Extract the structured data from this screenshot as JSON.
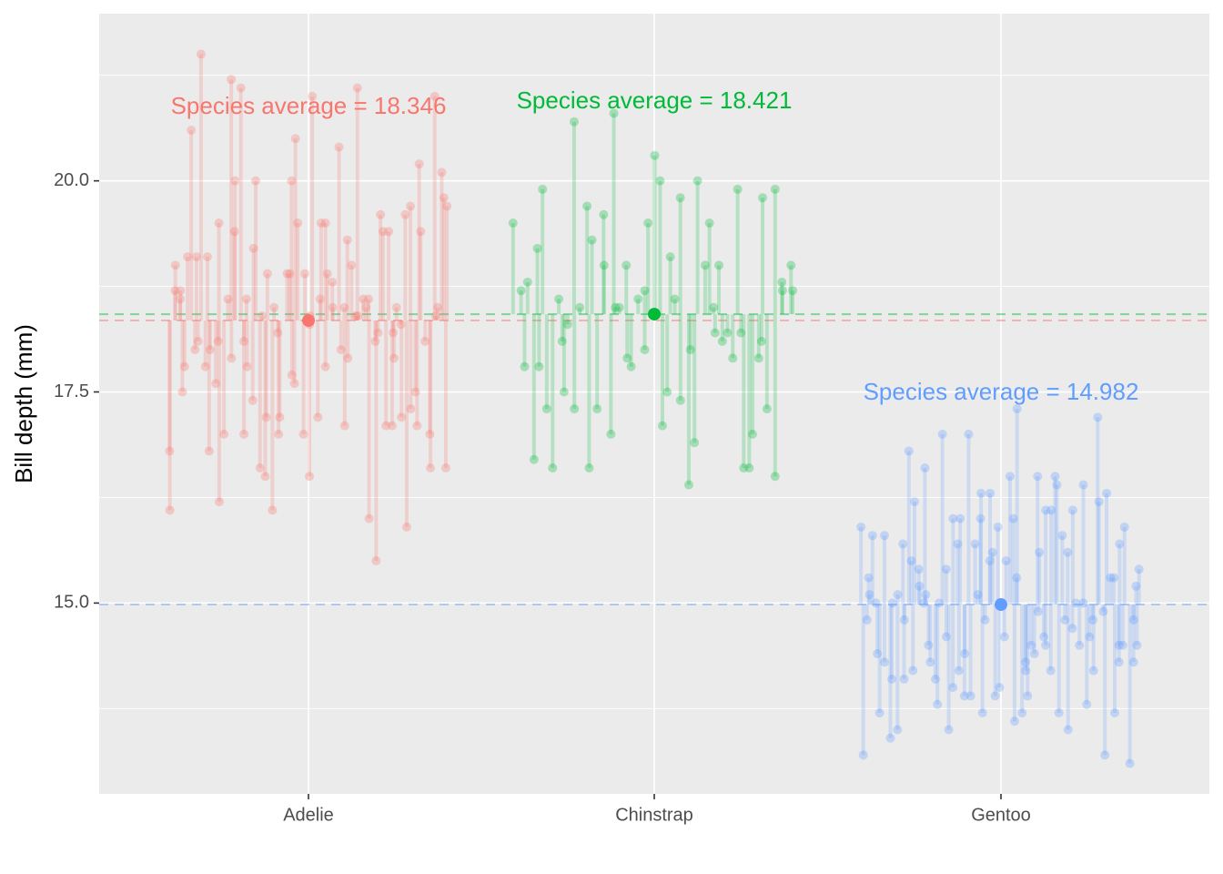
{
  "chart_data": {
    "type": "scatter",
    "title": "",
    "xlabel": "",
    "ylabel": "Bill depth (mm)",
    "categories": [
      "Adelie",
      "Chinstrap",
      "Gentoo"
    ],
    "y_ticks": [
      15.0,
      17.5,
      20.0
    ],
    "y_tick_labels": [
      "15.0",
      "17.5",
      "20.0"
    ],
    "ylim": [
      12.74,
      21.98
    ],
    "grid": true,
    "legend": "none",
    "series": [
      {
        "category": "Adelie",
        "color": "#F8766D",
        "average": 18.346,
        "annotation": "Species average = 18.346",
        "values": [
          16.1,
          16.8,
          18.7,
          19.0,
          18.7,
          18.6,
          17.5,
          17.8,
          19.1,
          20.6,
          18.0,
          18.1,
          19.1,
          21.5,
          17.8,
          19.1,
          18.0,
          16.8,
          17.6,
          19.5,
          18.1,
          16.2,
          17.0,
          18.6,
          21.2,
          17.9,
          19.4,
          20.0,
          21.1,
          18.1,
          17.0,
          18.6,
          17.8,
          17.4,
          19.2,
          20.0,
          16.6,
          18.4,
          16.5,
          17.2,
          18.9,
          18.5,
          16.1,
          18.2,
          17.0,
          17.2,
          18.9,
          18.9,
          20.0,
          17.7,
          17.6,
          20.5,
          19.5,
          18.9,
          17.0,
          18.3,
          16.5,
          18.4,
          21.0,
          17.2,
          18.6,
          19.5,
          17.8,
          19.5,
          18.9,
          18.5,
          18.8,
          20.4,
          18.0,
          17.1,
          18.5,
          19.3,
          17.9,
          19.0,
          18.4,
          21.1,
          18.4,
          18.6,
          18.5,
          18.6,
          16.0,
          18.1,
          15.5,
          18.2,
          19.4,
          19.6,
          17.1,
          19.4,
          17.1,
          17.9,
          18.2,
          18.5,
          18.3,
          17.2,
          15.9,
          19.6,
          17.3,
          19.7,
          17.1,
          17.5,
          20.2,
          19.4,
          18.1,
          16.6,
          17.0,
          18.4,
          21.0,
          18.5,
          20.1,
          19.8,
          16.6,
          19.7
        ]
      },
      {
        "category": "Chinstrap",
        "color": "#00BA38",
        "average": 18.421,
        "annotation": "Species average = 18.421",
        "values": [
          19.5,
          18.7,
          17.8,
          18.8,
          16.7,
          19.2,
          17.8,
          19.9,
          17.3,
          16.6,
          18.6,
          18.1,
          17.5,
          18.3,
          17.3,
          20.7,
          18.5,
          19.7,
          16.6,
          19.3,
          17.3,
          19.6,
          19.0,
          17.0,
          20.8,
          18.5,
          18.5,
          19.0,
          17.9,
          17.8,
          18.6,
          18.0,
          18.7,
          19.5,
          20.3,
          20.0,
          17.1,
          17.5,
          19.1,
          18.6,
          19.8,
          17.4,
          16.4,
          18.0,
          16.9,
          20.0,
          19.0,
          19.5,
          18.5,
          18.2,
          19.0,
          18.1,
          18.2,
          17.9,
          19.9,
          18.2,
          16.6,
          16.6,
          17.0,
          17.9,
          18.1,
          19.8,
          17.3,
          16.5,
          19.9,
          18.8,
          18.7,
          19.0,
          18.7
        ]
      },
      {
        "category": "Gentoo",
        "color": "#619CFF",
        "average": 14.982,
        "annotation": "Species average = 14.982",
        "values": [
          15.9,
          13.2,
          14.8,
          15.1,
          15.3,
          15.8,
          15.0,
          14.4,
          13.7,
          14.3,
          15.8,
          13.4,
          15.0,
          14.1,
          15.1,
          13.5,
          15.7,
          14.8,
          14.1,
          16.8,
          15.5,
          16.2,
          14.2,
          15.2,
          15.4,
          15.0,
          15.1,
          16.6,
          14.5,
          14.3,
          14.1,
          13.8,
          15.0,
          17.0,
          14.6,
          15.4,
          13.5,
          16.0,
          14.0,
          15.7,
          14.2,
          16.0,
          13.9,
          14.4,
          17.0,
          13.9,
          15.7,
          15.1,
          16.3,
          16.0,
          13.7,
          14.8,
          15.5,
          16.3,
          15.6,
          13.9,
          15.9,
          14.0,
          15.5,
          14.6,
          16.5,
          16.0,
          13.6,
          15.3,
          17.3,
          13.7,
          14.2,
          13.9,
          14.3,
          14.5,
          14.4,
          16.5,
          14.9,
          15.6,
          14.6,
          16.1,
          14.5,
          16.1,
          14.2,
          16.5,
          16.4,
          13.7,
          15.8,
          14.8,
          15.6,
          13.5,
          16.1,
          14.7,
          15.0,
          14.5,
          16.4,
          15.0,
          13.8,
          14.6,
          14.8,
          14.2,
          16.2,
          17.2,
          14.9,
          16.3,
          13.2,
          15.3,
          15.3,
          13.7,
          14.5,
          15.7,
          14.3,
          14.5,
          15.9,
          13.1,
          14.8,
          14.3,
          15.2,
          14.5,
          15.4
        ]
      }
    ]
  }
}
